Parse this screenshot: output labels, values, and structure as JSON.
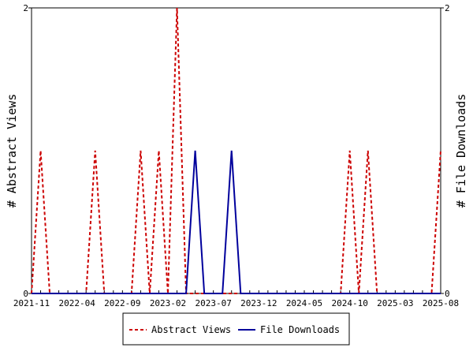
{
  "chart_data": {
    "type": "line",
    "x_tick_labels": [
      "2021-11",
      "2022-04",
      "2022-09",
      "2023-02",
      "2023-07",
      "2023-12",
      "2024-05",
      "2024-10",
      "2025-03",
      "2025-08"
    ],
    "x_range": [
      "2021-11",
      "2025-08"
    ],
    "ylabel_left": "# Abstract Views",
    "ylabel_right": "# File Downloads",
    "y_left_ticks": [
      "0",
      "2"
    ],
    "y_right_ticks": [
      "0",
      "2"
    ],
    "ylim_left": [
      0,
      2
    ],
    "ylim_right": [
      0,
      2
    ],
    "grid": false,
    "legend_position": "bottom",
    "series": [
      {
        "name": "Abstract Views",
        "axis": "left",
        "color": "#cc0000",
        "style": "dashed",
        "points": [
          [
            "2021-11",
            0
          ],
          [
            "2021-12",
            1
          ],
          [
            "2022-01",
            0
          ],
          [
            "2022-05",
            0
          ],
          [
            "2022-06",
            1
          ],
          [
            "2022-07",
            0
          ],
          [
            "2022-10",
            0
          ],
          [
            "2022-11",
            1
          ],
          [
            "2022-12",
            0
          ],
          [
            "2023-01",
            1
          ],
          [
            "2023-02",
            0
          ],
          [
            "2023-03",
            2
          ],
          [
            "2023-04",
            0
          ],
          [
            "2024-09",
            0
          ],
          [
            "2024-10",
            1
          ],
          [
            "2024-11",
            0
          ],
          [
            "2024-12",
            1
          ],
          [
            "2025-01",
            0
          ],
          [
            "2025-07",
            0
          ],
          [
            "2025-08",
            1
          ]
        ]
      },
      {
        "name": "File Downloads",
        "axis": "right",
        "color": "#00009c",
        "style": "solid",
        "points": [
          [
            "2021-11",
            0
          ],
          [
            "2023-04",
            0
          ],
          [
            "2023-05",
            1
          ],
          [
            "2023-06",
            0
          ],
          [
            "2023-08",
            0
          ],
          [
            "2023-09",
            1
          ],
          [
            "2023-10",
            0
          ],
          [
            "2025-08",
            0
          ]
        ]
      }
    ]
  }
}
